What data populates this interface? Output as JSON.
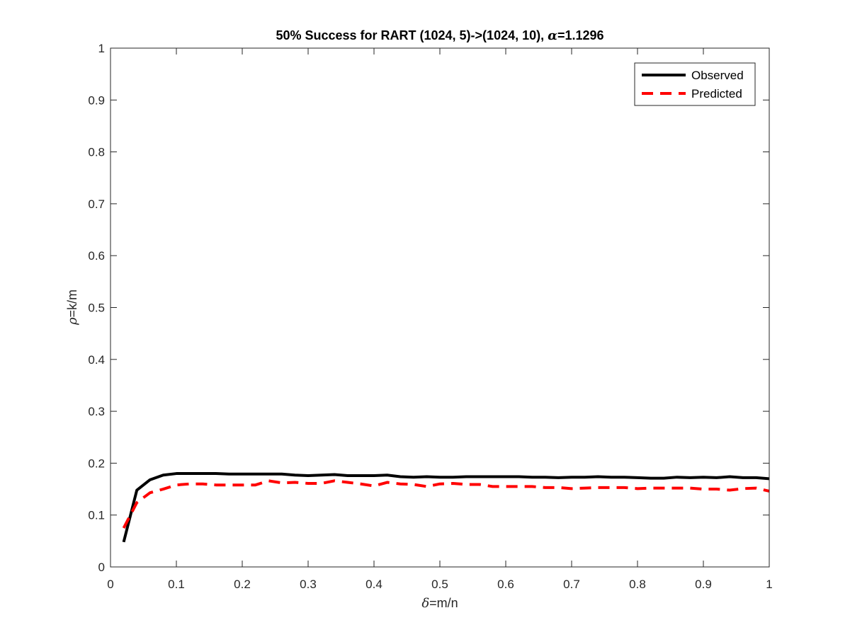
{
  "chart_data": {
    "type": "line",
    "title": {
      "prefix": "50% Success for RART (1024, 5)->(1024, 10), ",
      "symbol": "α",
      "suffix": "=1.1296"
    },
    "xlabel": {
      "symbol": "δ",
      "suffix": "=m/n"
    },
    "ylabel": {
      "symbol": "ρ",
      "suffix": "=k/m"
    },
    "xlim": [
      0,
      1
    ],
    "ylim": [
      0,
      1
    ],
    "xticks": [
      0,
      0.1,
      0.2,
      0.3,
      0.4,
      0.5,
      0.6,
      0.7,
      0.8,
      0.9,
      1
    ],
    "xtick_labels": [
      "0",
      "0.1",
      "0.2",
      "0.3",
      "0.4",
      "0.5",
      "0.6",
      "0.7",
      "0.8",
      "0.9",
      "1"
    ],
    "yticks": [
      0,
      0.1,
      0.2,
      0.3,
      0.4,
      0.5,
      0.6,
      0.7,
      0.8,
      0.9,
      1
    ],
    "ytick_labels": [
      "0",
      "0.1",
      "0.2",
      "0.3",
      "0.4",
      "0.5",
      "0.6",
      "0.7",
      "0.8",
      "0.9",
      "1"
    ],
    "grid": false,
    "legend_position": "top-right",
    "x": [
      0.02,
      0.04,
      0.06,
      0.08,
      0.1,
      0.12,
      0.14,
      0.16,
      0.18,
      0.2,
      0.22,
      0.24,
      0.26,
      0.28,
      0.3,
      0.32,
      0.34,
      0.36,
      0.38,
      0.4,
      0.42,
      0.44,
      0.46,
      0.48,
      0.5,
      0.52,
      0.54,
      0.56,
      0.58,
      0.6,
      0.62,
      0.64,
      0.66,
      0.68,
      0.7,
      0.72,
      0.74,
      0.76,
      0.78,
      0.8,
      0.82,
      0.84,
      0.86,
      0.88,
      0.9,
      0.92,
      0.94,
      0.96,
      0.98,
      1.0
    ],
    "series": [
      {
        "name": "Observed",
        "color": "#000000",
        "style": "solid",
        "values": [
          0.048,
          0.148,
          0.168,
          0.177,
          0.18,
          0.18,
          0.18,
          0.18,
          0.179,
          0.179,
          0.179,
          0.179,
          0.179,
          0.177,
          0.176,
          0.177,
          0.178,
          0.176,
          0.176,
          0.176,
          0.177,
          0.174,
          0.173,
          0.174,
          0.173,
          0.173,
          0.174,
          0.174,
          0.174,
          0.174,
          0.174,
          0.173,
          0.173,
          0.172,
          0.173,
          0.173,
          0.174,
          0.173,
          0.173,
          0.172,
          0.171,
          0.171,
          0.173,
          0.172,
          0.173,
          0.172,
          0.174,
          0.172,
          0.172,
          0.17
        ]
      },
      {
        "name": "Predicted",
        "color": "#ff0000",
        "style": "dashed",
        "values": [
          0.075,
          0.124,
          0.143,
          0.15,
          0.158,
          0.16,
          0.16,
          0.158,
          0.158,
          0.158,
          0.158,
          0.166,
          0.162,
          0.163,
          0.161,
          0.161,
          0.166,
          0.163,
          0.16,
          0.156,
          0.163,
          0.16,
          0.159,
          0.155,
          0.16,
          0.161,
          0.159,
          0.159,
          0.155,
          0.155,
          0.155,
          0.155,
          0.153,
          0.153,
          0.151,
          0.152,
          0.153,
          0.153,
          0.153,
          0.151,
          0.152,
          0.152,
          0.152,
          0.152,
          0.15,
          0.15,
          0.148,
          0.151,
          0.152,
          0.146
        ]
      }
    ]
  }
}
